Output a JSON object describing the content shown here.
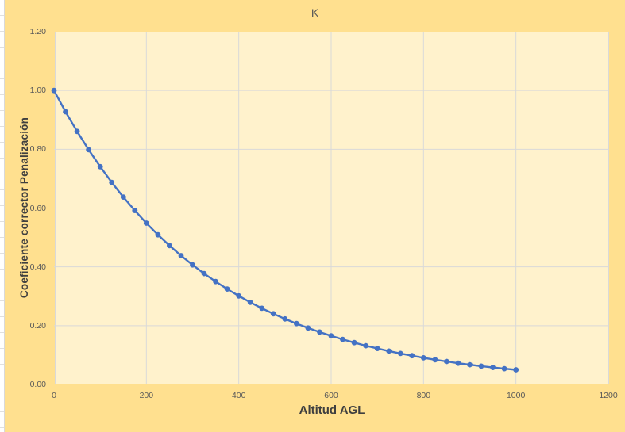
{
  "chart_data": {
    "type": "line",
    "title": "K",
    "xlabel": "Altitud AGL",
    "ylabel": "Coeficiente corrector Penalización",
    "x": [
      0,
      25,
      50,
      75,
      100,
      125,
      150,
      175,
      200,
      225,
      250,
      275,
      300,
      325,
      350,
      375,
      400,
      425,
      450,
      475,
      500,
      525,
      550,
      575,
      600,
      625,
      650,
      675,
      700,
      725,
      750,
      775,
      800,
      825,
      850,
      875,
      900,
      925,
      950,
      975,
      1000
    ],
    "values": [
      1.0,
      0.9277,
      0.8607,
      0.7985,
      0.7408,
      0.6873,
      0.6376,
      0.5916,
      0.5488,
      0.5092,
      0.4724,
      0.4382,
      0.4066,
      0.3772,
      0.3499,
      0.3247,
      0.3012,
      0.2794,
      0.2592,
      0.2405,
      0.2231,
      0.207,
      0.192,
      0.1782,
      0.1653,
      0.1534,
      0.1423,
      0.132,
      0.1225,
      0.1136,
      0.1054,
      0.0978,
      0.0907,
      0.0842,
      0.0781,
      0.0724,
      0.0672,
      0.0624,
      0.0578,
      0.0537,
      0.0498
    ],
    "xlim": [
      0,
      1200
    ],
    "ylim": [
      0,
      1.2
    ],
    "x_tick_labels": [
      "0",
      "200",
      "400",
      "600",
      "800",
      "1000",
      "1200"
    ],
    "y_tick_labels": [
      "0.00",
      "0.20",
      "0.40",
      "0.60",
      "0.80",
      "1.00",
      "1.20"
    ],
    "grid": true,
    "legend": "none",
    "marker": "circle"
  },
  "theme": {
    "chart_background": "#FFE08F",
    "plot_background": "#FFF2CC",
    "gridline_color": "#D9D9D9",
    "series_color": "#4472C4",
    "tick_label_color": "#595959",
    "title_color": "#595959",
    "axis_title_color": "#3F3F3F",
    "worksheet_background": "#FFFFFF",
    "worksheet_gridline": "#E0E0E0"
  }
}
